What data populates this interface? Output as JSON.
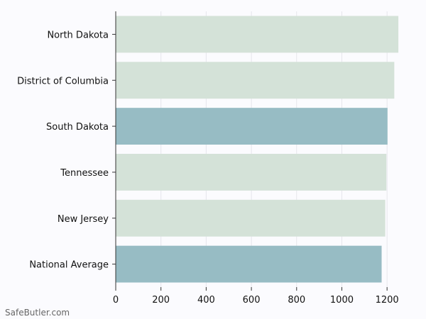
{
  "chart_data": {
    "type": "bar",
    "orientation": "horizontal",
    "title": "",
    "xlabel": "",
    "ylabel": "",
    "categories": [
      "North Dakota",
      "District of Columbia",
      "South Dakota",
      "Tennessee",
      "New Jersey",
      "National Average"
    ],
    "values": [
      1250,
      1232,
      1202,
      1197,
      1192,
      1176
    ],
    "highlighted": [
      false,
      false,
      true,
      false,
      false,
      true
    ],
    "xlim": [
      0,
      1300
    ],
    "xticks": [
      0,
      200,
      400,
      600,
      800,
      1000,
      1200
    ],
    "grid": "vertical",
    "colors": {
      "default": "#d4e2d8",
      "highlight": "#97bcc4",
      "grid": "#e6e6ec",
      "axis": "#333333"
    }
  },
  "watermark": "SafeButler.com"
}
